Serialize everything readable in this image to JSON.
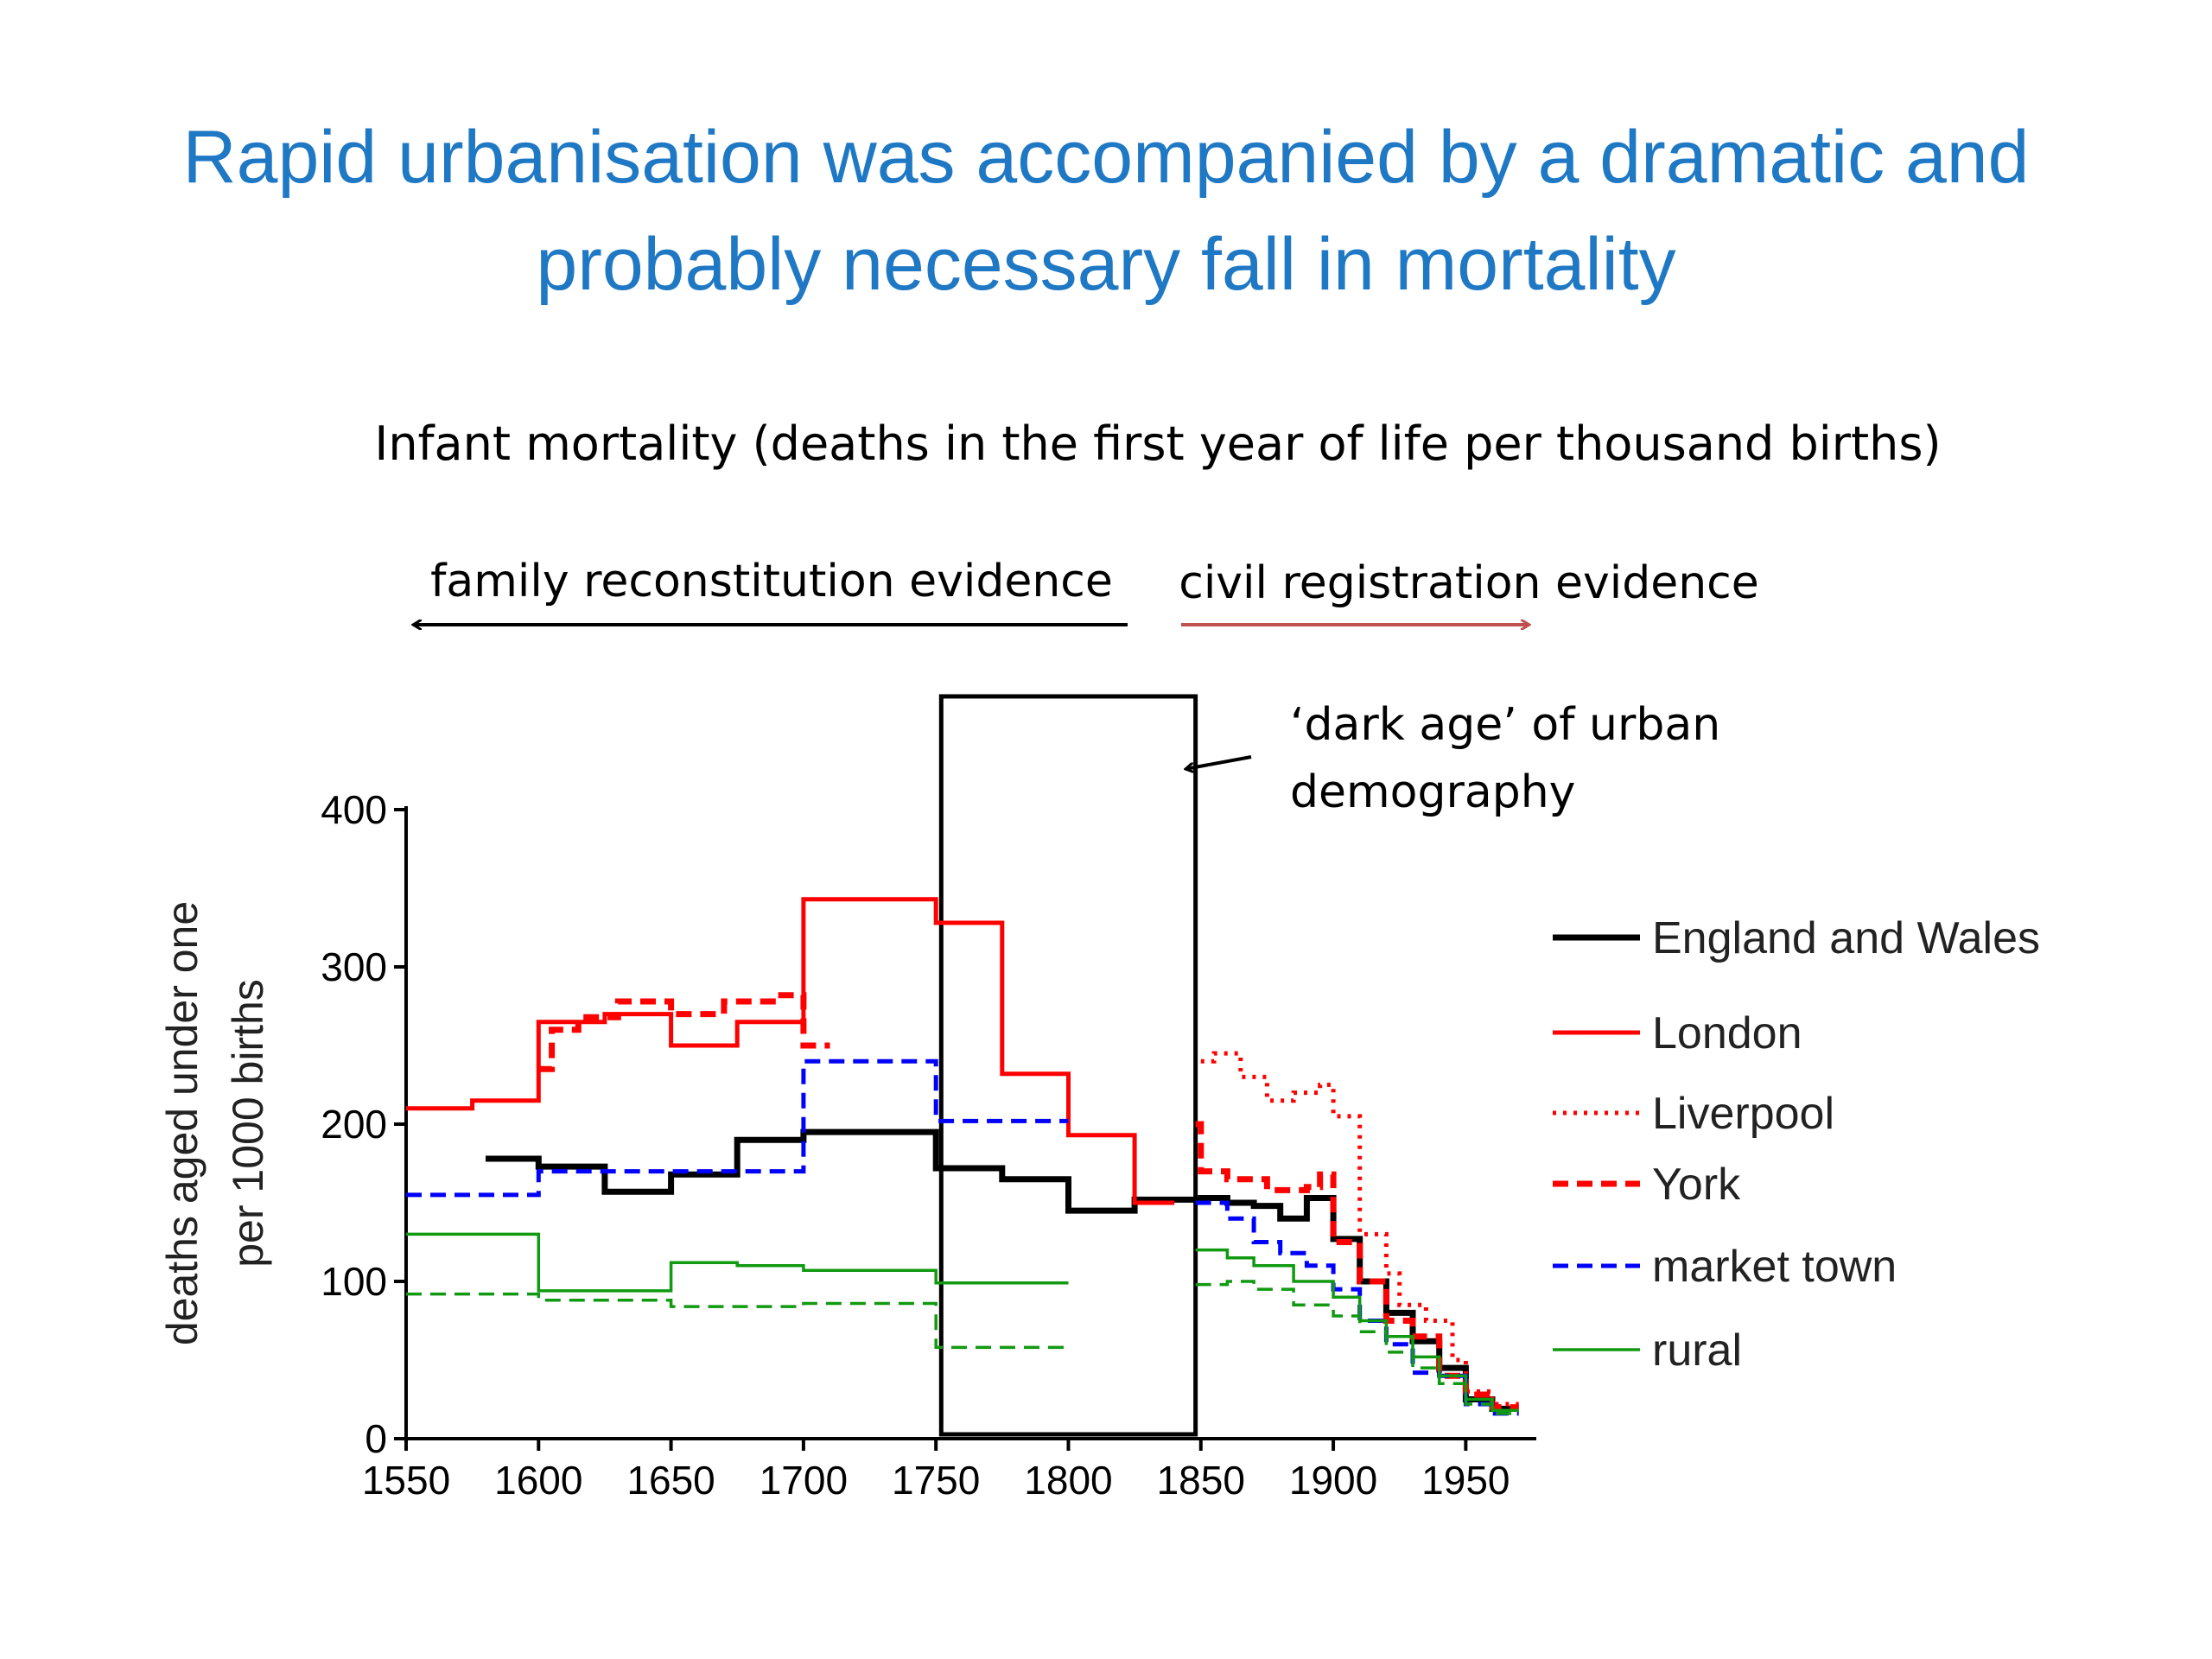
{
  "slide": {
    "title_lines": [
      "Rapid urbanisation was accompanied by a dramatic and",
      "probably necessary fall in mortality"
    ]
  },
  "annotations": {
    "subtitle": "Infant mortality (deaths in the first year of life per thousand births)",
    "family_evidence": "family reconstitution evidence",
    "civil_evidence": "civil registration evidence",
    "dark_age_line1": "‘dark age’ of urban",
    "dark_age_line2": "demography"
  },
  "colors": {
    "title": "#1f78c4",
    "black": "#000000",
    "red": "#ff0000",
    "blue": "#0000ff",
    "green": "#119911",
    "arrow_civil": "#c0504d"
  },
  "chart_data": {
    "type": "line",
    "step": true,
    "ylabel_lines": [
      "deaths aged under one",
      "per 1000 births"
    ],
    "xlabel": "",
    "xlim": [
      1550,
      1975
    ],
    "ylim": [
      0,
      400
    ],
    "xticks": [
      1550,
      1600,
      1650,
      1700,
      1750,
      1800,
      1850,
      1900,
      1950
    ],
    "yticks": [
      0,
      100,
      200,
      300,
      400
    ],
    "dark_age_box": {
      "x": [
        1752,
        1848
      ],
      "y_top": 472
    },
    "legend_position": "right",
    "series": [
      {
        "name": "England and Wales",
        "color": "#000000",
        "style": "solid",
        "width": "heavy",
        "segments": [
          [
            [
              1580,
              178
            ],
            [
              1600,
              178
            ],
            [
              1600,
              173
            ],
            [
              1625,
              173
            ],
            [
              1625,
              157
            ],
            [
              1650,
              157
            ],
            [
              1650,
              168
            ],
            [
              1675,
              168
            ],
            [
              1675,
              190
            ],
            [
              1700,
              190
            ],
            [
              1700,
              195
            ],
            [
              1750,
              195
            ],
            [
              1750,
              172
            ],
            [
              1775,
              172
            ],
            [
              1775,
              165
            ],
            [
              1800,
              165
            ],
            [
              1800,
              145
            ],
            [
              1825,
              145
            ],
            [
              1825,
              152
            ],
            [
              1850,
              152
            ],
            [
              1850,
              153
            ],
            [
              1860,
              153
            ],
            [
              1860,
              150
            ],
            [
              1870,
              150
            ],
            [
              1870,
              148
            ],
            [
              1880,
              148
            ],
            [
              1880,
              140
            ],
            [
              1890,
              140
            ],
            [
              1890,
              153
            ],
            [
              1900,
              153
            ],
            [
              1900,
              127
            ],
            [
              1910,
              127
            ],
            [
              1910,
              100
            ],
            [
              1920,
              100
            ],
            [
              1920,
              80
            ],
            [
              1930,
              80
            ],
            [
              1930,
              62
            ],
            [
              1940,
              62
            ],
            [
              1940,
              45
            ],
            [
              1950,
              45
            ],
            [
              1950,
              25
            ],
            [
              1960,
              25
            ],
            [
              1960,
              19
            ],
            [
              1970,
              19
            ]
          ]
        ]
      },
      {
        "name": "London",
        "color": "#ff0000",
        "style": "solid",
        "width": "medium",
        "segments": [
          [
            [
              1550,
              210
            ],
            [
              1575,
              210
            ],
            [
              1575,
              215
            ],
            [
              1600,
              215
            ],
            [
              1600,
              265
            ],
            [
              1625,
              265
            ],
            [
              1625,
              270
            ],
            [
              1650,
              270
            ],
            [
              1650,
              250
            ],
            [
              1675,
              250
            ],
            [
              1675,
              265
            ],
            [
              1700,
              265
            ],
            [
              1700,
              343
            ],
            [
              1750,
              343
            ],
            [
              1750,
              328
            ],
            [
              1775,
              328
            ],
            [
              1775,
              232
            ],
            [
              1800,
              232
            ],
            [
              1800,
              193
            ],
            [
              1825,
              193
            ],
            [
              1825,
              150
            ],
            [
              1840,
              150
            ]
          ]
        ]
      },
      {
        "name": "Liverpool",
        "color": "#ff0000",
        "style": "dotted",
        "width": "medium",
        "segments": [
          [
            [
              1850,
              240
            ],
            [
              1855,
              240
            ],
            [
              1855,
              245
            ],
            [
              1865,
              245
            ],
            [
              1865,
              230
            ],
            [
              1875,
              230
            ],
            [
              1875,
              215
            ],
            [
              1885,
              215
            ],
            [
              1885,
              220
            ],
            [
              1895,
              220
            ],
            [
              1895,
              225
            ],
            [
              1900,
              225
            ],
            [
              1900,
              205
            ],
            [
              1910,
              205
            ],
            [
              1910,
              130
            ],
            [
              1920,
              130
            ],
            [
              1920,
              105
            ],
            [
              1925,
              105
            ],
            [
              1925,
              85
            ],
            [
              1935,
              85
            ],
            [
              1935,
              75
            ],
            [
              1945,
              75
            ],
            [
              1945,
              50
            ],
            [
              1950,
              50
            ],
            [
              1950,
              30
            ],
            [
              1960,
              30
            ],
            [
              1960,
              22
            ],
            [
              1970,
              22
            ]
          ]
        ]
      },
      {
        "name": "York",
        "color": "#ff0000",
        "style": "dashed",
        "width": "heavy",
        "segments": [
          [
            [
              1600,
              235
            ],
            [
              1605,
              235
            ],
            [
              1605,
              260
            ],
            [
              1615,
              260
            ],
            [
              1615,
              268
            ],
            [
              1630,
              268
            ],
            [
              1630,
              278
            ],
            [
              1650,
              278
            ],
            [
              1650,
              270
            ],
            [
              1670,
              270
            ],
            [
              1670,
              278
            ],
            [
              1690,
              278
            ],
            [
              1690,
              282
            ],
            [
              1700,
              282
            ],
            [
              1700,
              250
            ],
            [
              1710,
              250
            ]
          ],
          [
            [
              1848,
              200
            ],
            [
              1850,
              200
            ],
            [
              1850,
              170
            ],
            [
              1860,
              170
            ],
            [
              1860,
              165
            ],
            [
              1875,
              165
            ],
            [
              1875,
              158
            ],
            [
              1890,
              158
            ],
            [
              1890,
              160
            ],
            [
              1895,
              160
            ],
            [
              1895,
              168
            ],
            [
              1900,
              168
            ],
            [
              1900,
              125
            ],
            [
              1910,
              125
            ],
            [
              1910,
              100
            ],
            [
              1920,
              100
            ],
            [
              1920,
              75
            ],
            [
              1930,
              75
            ],
            [
              1930,
              65
            ],
            [
              1940,
              65
            ],
            [
              1940,
              40
            ],
            [
              1950,
              40
            ],
            [
              1950,
              28
            ],
            [
              1960,
              28
            ],
            [
              1960,
              20
            ],
            [
              1970,
              20
            ]
          ]
        ]
      },
      {
        "name": "market town",
        "color": "#0000ff",
        "style": "dashed",
        "width": "medium",
        "segments": [
          [
            [
              1550,
              155
            ],
            [
              1600,
              155
            ],
            [
              1600,
              170
            ],
            [
              1650,
              170
            ],
            [
              1650,
              170
            ],
            [
              1700,
              170
            ],
            [
              1700,
              240
            ],
            [
              1750,
              240
            ],
            [
              1750,
              202
            ],
            [
              1800,
              202
            ]
          ],
          [
            [
              1848,
              150
            ],
            [
              1860,
              150
            ],
            [
              1860,
              140
            ],
            [
              1870,
              140
            ],
            [
              1870,
              125
            ],
            [
              1880,
              125
            ],
            [
              1880,
              118
            ],
            [
              1890,
              118
            ],
            [
              1890,
              110
            ],
            [
              1900,
              110
            ],
            [
              1900,
              95
            ],
            [
              1910,
              95
            ],
            [
              1910,
              75
            ],
            [
              1920,
              75
            ],
            [
              1920,
              60
            ],
            [
              1930,
              60
            ],
            [
              1930,
              42
            ],
            [
              1940,
              42
            ],
            [
              1940,
              40
            ],
            [
              1950,
              40
            ],
            [
              1950,
              22
            ],
            [
              1960,
              22
            ],
            [
              1960,
              16
            ],
            [
              1970,
              16
            ]
          ]
        ]
      },
      {
        "name": "rural",
        "color": "#119911",
        "style": "solid",
        "width": "thin",
        "segments": [
          [
            [
              1550,
              130
            ],
            [
              1600,
              130
            ],
            [
              1600,
              94
            ],
            [
              1650,
              94
            ],
            [
              1650,
              112
            ],
            [
              1675,
              112
            ],
            [
              1675,
              110
            ],
            [
              1700,
              110
            ],
            [
              1700,
              107
            ],
            [
              1750,
              107
            ],
            [
              1750,
              99
            ],
            [
              1800,
              99
            ]
          ],
          [
            [
              1848,
              120
            ],
            [
              1860,
              120
            ],
            [
              1860,
              115
            ],
            [
              1870,
              115
            ],
            [
              1870,
              110
            ],
            [
              1885,
              110
            ],
            [
              1885,
              100
            ],
            [
              1900,
              100
            ],
            [
              1900,
              90
            ],
            [
              1910,
              90
            ],
            [
              1910,
              75
            ],
            [
              1920,
              75
            ],
            [
              1920,
              65
            ],
            [
              1930,
              65
            ],
            [
              1930,
              52
            ],
            [
              1940,
              52
            ],
            [
              1940,
              40
            ],
            [
              1950,
              40
            ],
            [
              1950,
              25
            ],
            [
              1960,
              25
            ],
            [
              1960,
              18
            ],
            [
              1970,
              18
            ]
          ]
        ]
      },
      {
        "name": "rural",
        "legend": false,
        "color": "#119911",
        "style": "dashed",
        "width": "thin",
        "segments": [
          [
            [
              1550,
              92
            ],
            [
              1600,
              92
            ],
            [
              1600,
              88
            ],
            [
              1650,
              88
            ],
            [
              1650,
              84
            ],
            [
              1700,
              84
            ],
            [
              1700,
              86
            ],
            [
              1750,
              86
            ],
            [
              1750,
              58
            ],
            [
              1800,
              58
            ]
          ],
          [
            [
              1848,
              98
            ],
            [
              1860,
              98
            ],
            [
              1860,
              100
            ],
            [
              1870,
              100
            ],
            [
              1870,
              95
            ],
            [
              1885,
              95
            ],
            [
              1885,
              85
            ],
            [
              1900,
              85
            ],
            [
              1900,
              78
            ],
            [
              1910,
              78
            ],
            [
              1910,
              68
            ],
            [
              1920,
              68
            ],
            [
              1920,
              55
            ],
            [
              1930,
              55
            ],
            [
              1930,
              45
            ],
            [
              1940,
              45
            ],
            [
              1940,
              35
            ],
            [
              1950,
              35
            ],
            [
              1950,
              22
            ],
            [
              1960,
              22
            ],
            [
              1960,
              16
            ],
            [
              1970,
              16
            ]
          ]
        ]
      }
    ]
  }
}
